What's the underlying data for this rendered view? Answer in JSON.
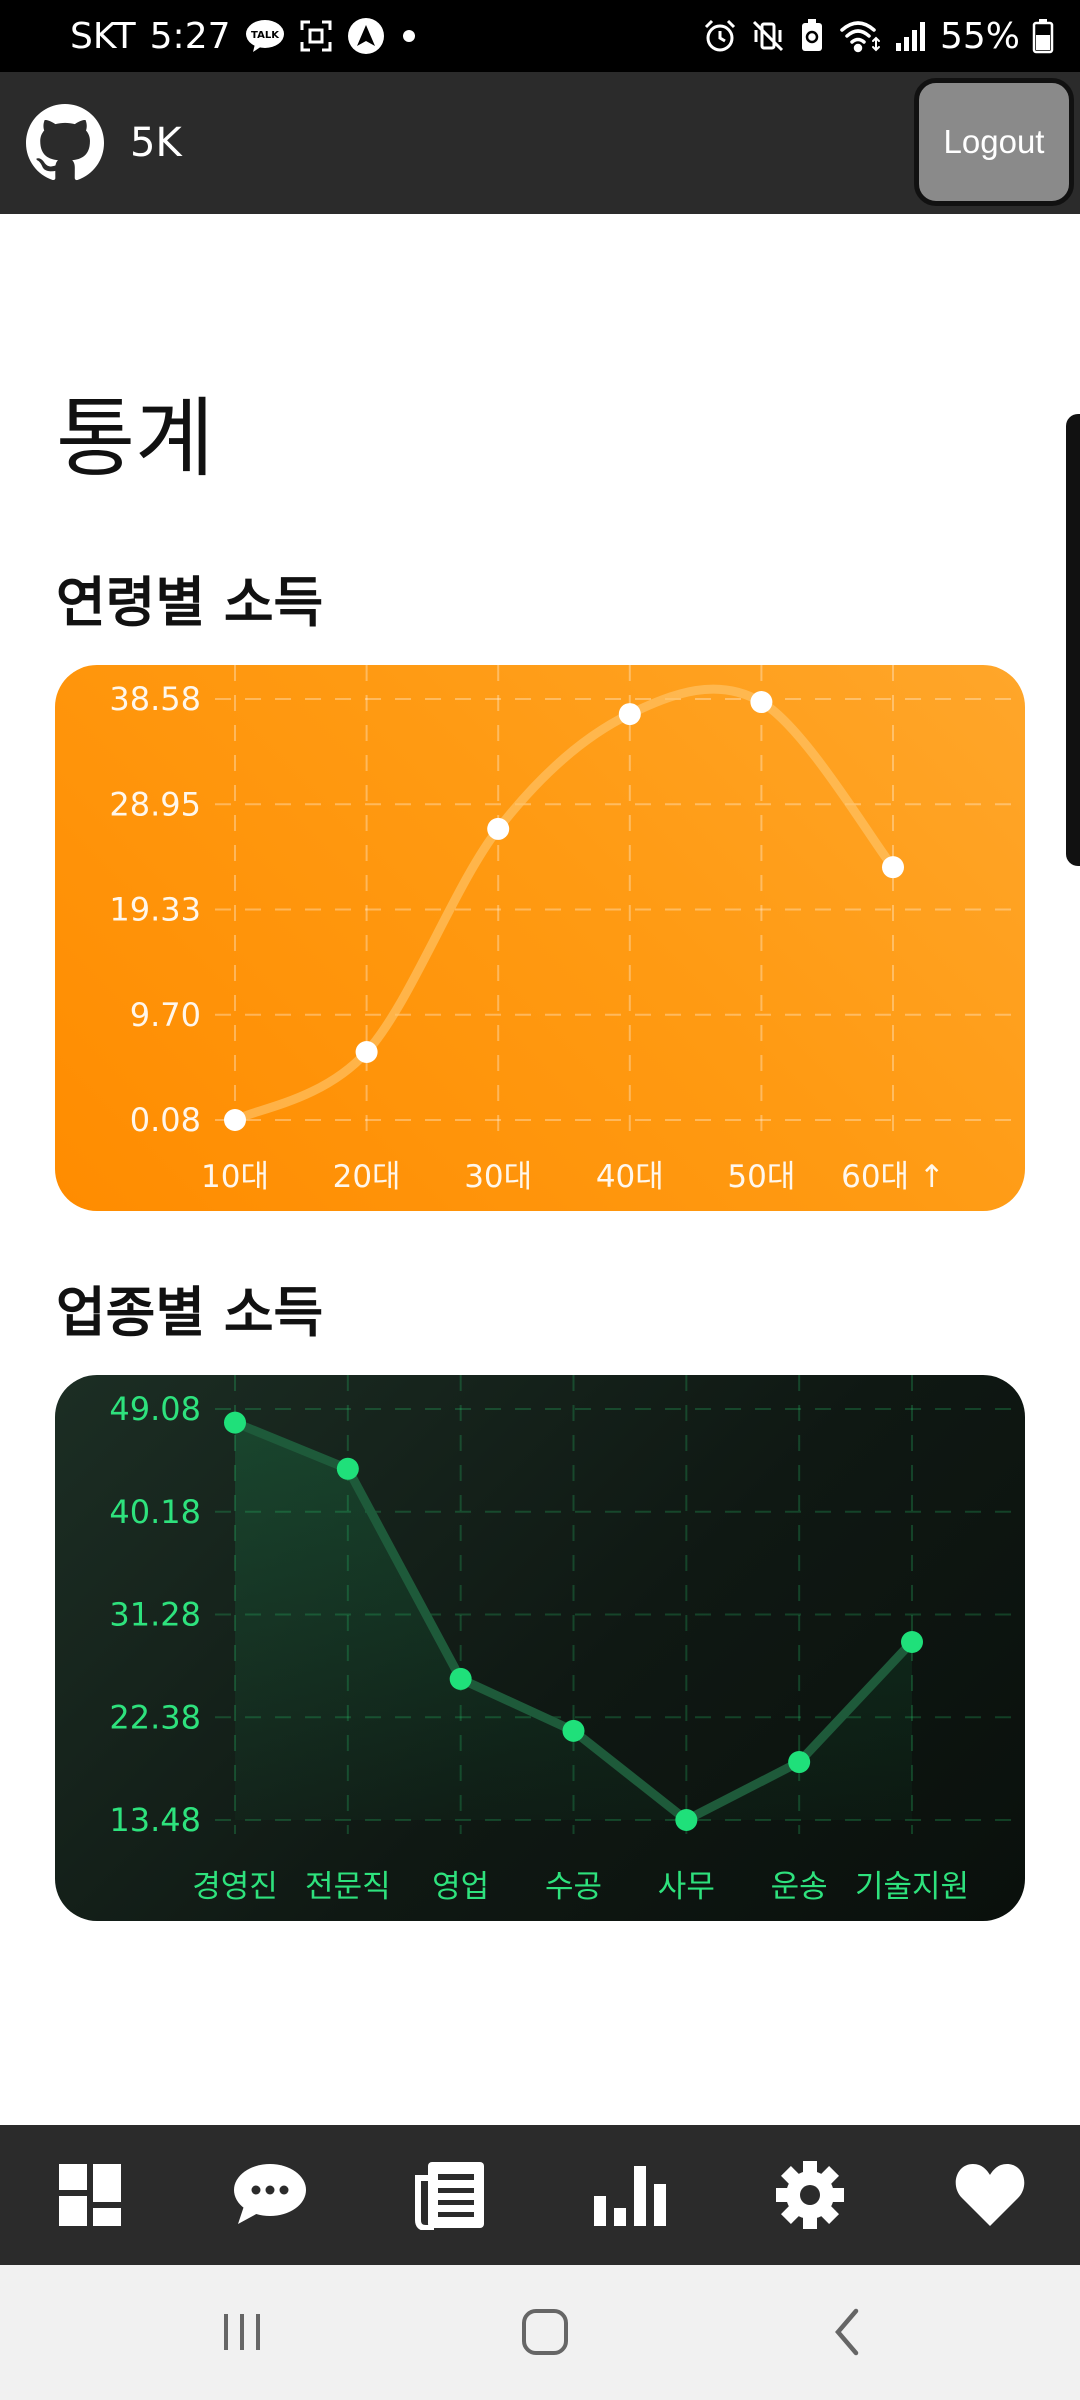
{
  "status_bar": {
    "carrier": "SKT",
    "time": "5:27",
    "talk_badge": "TALK",
    "battery": "55%"
  },
  "app_bar": {
    "title": "5K",
    "logout_label": "Logout"
  },
  "page": {
    "title": "통계"
  },
  "sections": [
    {
      "title": "연령별 소득"
    },
    {
      "title": "업종별 소득"
    }
  ],
  "chart_data": [
    {
      "type": "line",
      "title": "",
      "categories": [
        "10대",
        "20대",
        "30대",
        "40대",
        "50대",
        "60대 ↑"
      ],
      "values": [
        0.08,
        6.3,
        26.7,
        37.2,
        38.3,
        23.2
      ],
      "yticks": [
        "38.58",
        "28.95",
        "19.33",
        "9.70",
        "0.08"
      ],
      "ylim": [
        0.08,
        38.58
      ],
      "smooth": true,
      "grid": true,
      "line_color": "#ffc56a",
      "point_color": "#ffffff"
    },
    {
      "type": "area",
      "title": "",
      "categories": [
        "경영진",
        "전문직",
        "영업",
        "수공",
        "사무",
        "운송",
        "기술지원"
      ],
      "values": [
        47.9,
        43.9,
        25.7,
        21.2,
        13.48,
        18.5,
        28.9
      ],
      "yticks": [
        "49.08",
        "40.18",
        "31.28",
        "22.38",
        "13.48"
      ],
      "ylim": [
        13.48,
        49.08
      ],
      "smooth": false,
      "grid": true,
      "line_color": "#1e5a3a",
      "point_color": "#1fe07a",
      "label_color": "#2ee27d"
    }
  ],
  "bottom_nav": {
    "items": [
      {
        "name": "dashboard",
        "icon": "dashboard-icon"
      },
      {
        "name": "chat",
        "icon": "chat-icon"
      },
      {
        "name": "news",
        "icon": "news-icon"
      },
      {
        "name": "stats",
        "icon": "bar-chart-icon"
      },
      {
        "name": "settings",
        "icon": "gear-icon"
      },
      {
        "name": "favorites",
        "icon": "heart-icon"
      }
    ]
  },
  "colors": {
    "app_bar": "#2b2b2b",
    "orange_card": "#ff9a12",
    "dark_card": "#0f1813",
    "nav_icon": "#ffffff"
  }
}
